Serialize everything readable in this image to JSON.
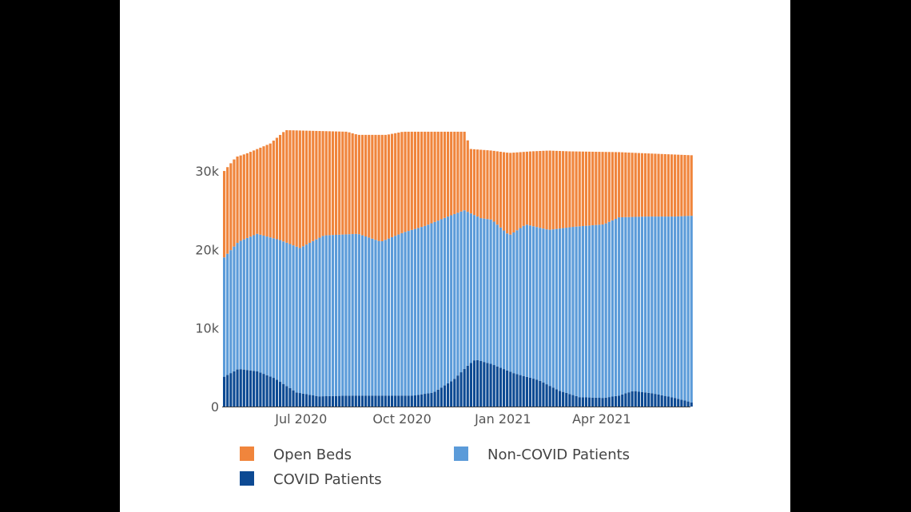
{
  "chart_data": {
    "type": "bar",
    "stacked": true,
    "x_tick_labels": [
      "Jul 2020",
      "Oct 2020",
      "Jan 2021",
      "Apr 2021"
    ],
    "y_tick_labels": [
      "0",
      "10k",
      "20k",
      "30k"
    ],
    "y_ticks": [
      0,
      10000,
      20000,
      30000
    ],
    "ylim": [
      0,
      35500
    ],
    "x_start": "2020-04-20",
    "x_end": "2021-06-21",
    "x_tick_dates": [
      "2020-07-01",
      "2020-10-01",
      "2021-01-01",
      "2021-04-01"
    ],
    "grid": false,
    "legend_position": "bottom",
    "series": [
      {
        "name": "COVID Patients",
        "color": "#0d4a93",
        "anchors": [
          [
            "2020-04-20",
            3800
          ],
          [
            "2020-05-03",
            4800
          ],
          [
            "2020-05-20",
            4500
          ],
          [
            "2020-06-05",
            3600
          ],
          [
            "2020-06-25",
            1800
          ],
          [
            "2020-07-15",
            1300
          ],
          [
            "2020-08-15",
            1400
          ],
          [
            "2020-09-15",
            1400
          ],
          [
            "2020-10-10",
            1400
          ],
          [
            "2020-10-28",
            1800
          ],
          [
            "2020-11-15",
            3400
          ],
          [
            "2020-11-28",
            5200
          ],
          [
            "2020-12-05",
            6000
          ],
          [
            "2020-12-20",
            5400
          ],
          [
            "2021-01-10",
            4200
          ],
          [
            "2021-01-31",
            3400
          ],
          [
            "2021-02-20",
            2000
          ],
          [
            "2021-03-10",
            1200
          ],
          [
            "2021-04-01",
            1100
          ],
          [
            "2021-04-15",
            1400
          ],
          [
            "2021-04-28",
            2000
          ],
          [
            "2021-05-15",
            1700
          ],
          [
            "2021-06-05",
            1100
          ],
          [
            "2021-06-21",
            500
          ]
        ]
      },
      {
        "name": "Non-COVID Patients",
        "color": "#5b9bd9",
        "total_anchors": [
          [
            "2020-04-20",
            19000
          ],
          [
            "2020-05-03",
            21000
          ],
          [
            "2020-05-20",
            22000
          ],
          [
            "2020-06-10",
            21200
          ],
          [
            "2020-06-28",
            20200
          ],
          [
            "2020-07-20",
            21800
          ],
          [
            "2020-08-20",
            22000
          ],
          [
            "2020-09-10",
            21000
          ],
          [
            "2020-10-01",
            22200
          ],
          [
            "2020-10-20",
            23000
          ],
          [
            "2020-11-10",
            24200
          ],
          [
            "2020-11-25",
            25000
          ],
          [
            "2020-12-10",
            24000
          ],
          [
            "2020-12-20",
            23800
          ],
          [
            "2021-01-05",
            21800
          ],
          [
            "2021-01-20",
            23200
          ],
          [
            "2021-02-10",
            22500
          ],
          [
            "2021-03-05",
            22900
          ],
          [
            "2021-04-01",
            23200
          ],
          [
            "2021-04-15",
            24100
          ],
          [
            "2021-05-10",
            24200
          ],
          [
            "2021-06-05",
            24200
          ],
          [
            "2021-06-21",
            24300
          ]
        ]
      },
      {
        "name": "Open Beds",
        "color": "#f0853c",
        "total_anchors": [
          [
            "2020-04-20",
            30000
          ],
          [
            "2020-05-01",
            31800
          ],
          [
            "2020-05-10",
            32200
          ],
          [
            "2020-06-01",
            33500
          ],
          [
            "2020-06-15",
            35200
          ],
          [
            "2020-08-10",
            35000
          ],
          [
            "2020-08-20",
            34600
          ],
          [
            "2020-09-15",
            34600
          ],
          [
            "2020-09-30",
            35000
          ],
          [
            "2020-11-25",
            35000
          ],
          [
            "2020-12-01",
            32800
          ],
          [
            "2020-12-20",
            32600
          ],
          [
            "2021-01-05",
            32300
          ],
          [
            "2021-01-25",
            32500
          ],
          [
            "2021-02-10",
            32600
          ],
          [
            "2021-03-01",
            32500
          ],
          [
            "2021-04-15",
            32400
          ],
          [
            "2021-05-01",
            32300
          ],
          [
            "2021-06-21",
            32000
          ]
        ]
      }
    ]
  }
}
